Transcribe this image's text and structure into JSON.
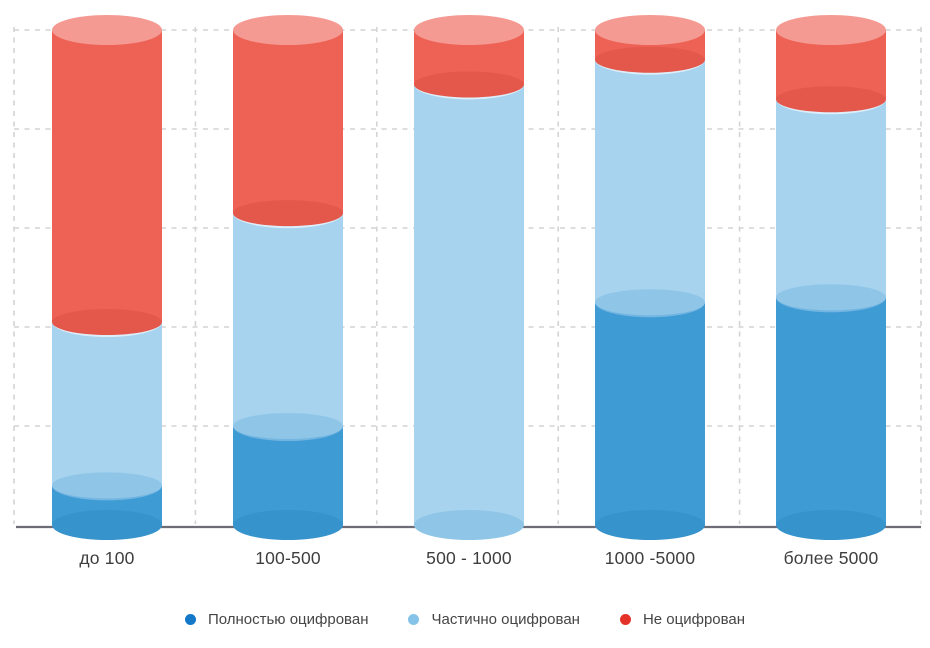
{
  "page": {
    "background": "#ffffff"
  },
  "chart_data": {
    "type": "bar",
    "variant": "100%-stacked-3d-cylinder",
    "title": "",
    "xlabel": "",
    "ylabel": "",
    "categories": [
      "до 100",
      "100-500",
      "500 - 1000",
      "1000 -5000",
      "более 5000"
    ],
    "stack_order_bottom_to_top": [
      "Полностью оцифрован",
      "Частично оцифрован",
      "Не оцифрован"
    ],
    "series": [
      {
        "name": "Полностью оцифрован",
        "values": [
          8,
          20,
          0,
          45,
          46
        ],
        "color": "#3f9bd4",
        "cap_bottom_color": "#3793cb",
        "cap_top_color": "#74b6e2",
        "legend_dot_color": "#1378c8"
      },
      {
        "name": "Частично оцифрован",
        "values": [
          33,
          43,
          89,
          49,
          40
        ],
        "color": "#a7d3ee",
        "cap_bottom_color": "#8fc6e8",
        "cap_top_color": "#dceffa",
        "legend_dot_color": "#85c3e8"
      },
      {
        "name": "Не оцифрован",
        "values": [
          59,
          37,
          11,
          6,
          14
        ],
        "color": "#ee6256",
        "cap_bottom_color": "#e4574b",
        "cap_top_color": "#f49a92",
        "legend_dot_color": "#e53228"
      }
    ],
    "ylim": [
      0,
      100
    ],
    "y_axis_labels_visible": false,
    "grid": {
      "visible": true,
      "style": "dashed",
      "color": "#d4d4d4",
      "rows": 5,
      "cols": 5
    },
    "axis_line_color": "#6d6d78",
    "label_color": "#3e3e3e",
    "legend": {
      "position": "bottom"
    }
  }
}
